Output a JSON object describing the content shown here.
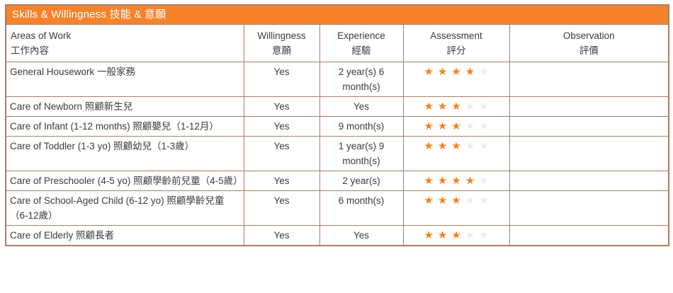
{
  "title": "Skills & Willingness 技能 & 意願",
  "colors": {
    "title_bar_bg": "#f6832b",
    "title_text": "#ffffff",
    "table_border": "#ac7c62",
    "star_filled": "#f5801e",
    "star_empty": "#ebebeb",
    "body_text": "#3b3b3b"
  },
  "table": {
    "headers": [
      {
        "en": "Areas of Work",
        "zh": "工作內容"
      },
      {
        "en": "Willingness",
        "zh": "意願"
      },
      {
        "en": "Experience",
        "zh": "經驗"
      },
      {
        "en": "Assessment",
        "zh": "評分"
      },
      {
        "en": "Observation",
        "zh": "評價"
      }
    ],
    "stars_max": 5,
    "rows": [
      {
        "area": "General Housework 一般家務",
        "willingness": "Yes",
        "experience": "2 year(s) 6 month(s)",
        "rating": 4,
        "observation": ""
      },
      {
        "area": "Care of Newborn 照顧新生兒",
        "willingness": "Yes",
        "experience": "Yes",
        "rating": 3,
        "observation": ""
      },
      {
        "area": "Care of Infant (1-12 months) 照顧嬰兒（1-12月）",
        "willingness": "Yes",
        "experience": "9 month(s)",
        "rating": 3,
        "observation": ""
      },
      {
        "area": "Care of Toddler (1-3 yo) 照顧幼兒（1-3歲）",
        "willingness": "Yes",
        "experience": "1 year(s) 9 month(s)",
        "rating": 3,
        "observation": ""
      },
      {
        "area": "Care of Preschooler (4-5 yo) 照顧學齡前兒童（4-5歲）",
        "willingness": "Yes",
        "experience": "2 year(s)",
        "rating": 4,
        "observation": ""
      },
      {
        "area": "Care of School-Aged Child (6-12 yo) 照顧學齡兒童（6-12歲）",
        "willingness": "Yes",
        "experience": "6 month(s)",
        "rating": 3,
        "observation": ""
      },
      {
        "area": "Care of Elderly 照顧長者",
        "willingness": "Yes",
        "experience": "Yes",
        "rating": 3,
        "observation": ""
      }
    ]
  }
}
